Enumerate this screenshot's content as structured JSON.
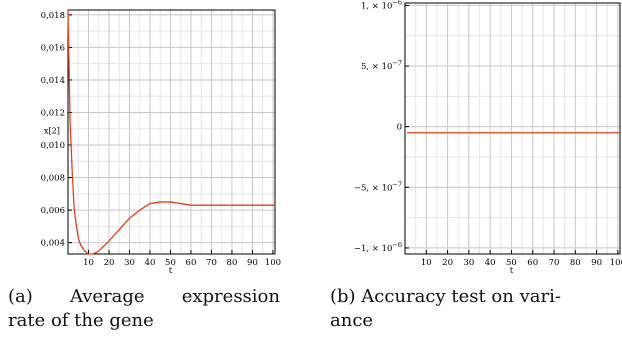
{
  "chart_data": [
    {
      "type": "line",
      "xlabel": "t",
      "ylabel": "x[2]",
      "xlim": [
        0,
        101
      ],
      "ylim": [
        0.0033,
        0.0183
      ],
      "x_ticks": [
        10,
        20,
        30,
        40,
        50,
        60,
        70,
        80,
        90,
        100
      ],
      "x_tick_labels": [
        "10",
        "20",
        "30",
        "40",
        "50",
        "60",
        "70",
        "80",
        "90",
        "100"
      ],
      "y_ticks": [
        0.004,
        0.006,
        0.008,
        0.01,
        0.012,
        0.014,
        0.016,
        0.018
      ],
      "y_tick_labels": [
        "0,004",
        "0,006",
        "0,008",
        "0,010",
        "0,012",
        "0,014",
        "0,016",
        "0,018"
      ],
      "grid": true,
      "line_color": "#e8401c",
      "series": [
        {
          "x": [
            0,
            1,
            2,
            3,
            4,
            5,
            6,
            8,
            10,
            12,
            14,
            16,
            20,
            25,
            30,
            35,
            40,
            45,
            50,
            55,
            60,
            65,
            70,
            75,
            80,
            90,
            101
          ],
          "y": [
            0.0183,
            0.0115,
            0.0085,
            0.0061,
            0.0051,
            0.0043,
            0.0039,
            0.0035,
            0.0033,
            0.0033,
            0.0034,
            0.0036,
            0.0041,
            0.0048,
            0.0055,
            0.006,
            0.0064,
            0.0065,
            0.0065,
            0.0064,
            0.0063,
            0.0063,
            0.0063,
            0.0063,
            0.0063,
            0.0063,
            0.0063
          ]
        }
      ]
    },
    {
      "type": "line",
      "xlabel": "t",
      "ylabel": "",
      "xlim": [
        0,
        101
      ],
      "ylim": [
        -1.05e-06,
        1.02e-06
      ],
      "x_ticks": [
        10,
        20,
        30,
        40,
        50,
        60,
        70,
        80,
        90,
        100
      ],
      "x_tick_labels": [
        "10",
        "20",
        "30",
        "40",
        "50",
        "60",
        "70",
        "80",
        "90",
        "100"
      ],
      "y_ticks": [
        -1e-06,
        -5e-07,
        0,
        5e-07,
        1e-06
      ],
      "y_tick_labels": [
        {
          "base": "−1, × 10",
          "exp": "−6"
        },
        {
          "base": "−5, × 10",
          "exp": "−7"
        },
        {
          "base": "0",
          "exp": ""
        },
        {
          "base": "5, × 10",
          "exp": "−7"
        },
        {
          "base": "1, × 10",
          "exp": "−6"
        }
      ],
      "grid": true,
      "line_color": "#e8401c",
      "series": [
        {
          "x": [
            1,
            101
          ],
          "y": [
            -5e-08,
            -5e-08
          ]
        }
      ]
    }
  ],
  "captions": {
    "a": {
      "tag": "(a)",
      "line1_word1": "Average",
      "line1_word2": "expression",
      "line2": "rate of the gene"
    },
    "b": {
      "line1": "(b) Accuracy test on vari-",
      "line2": "ance"
    }
  }
}
